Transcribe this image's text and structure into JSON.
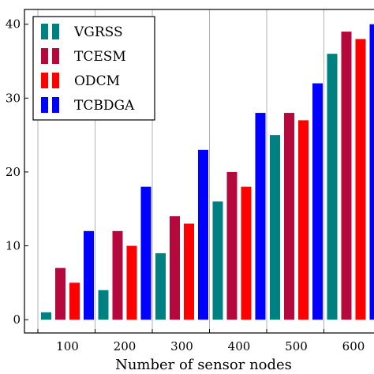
{
  "chart_data": {
    "type": "bar",
    "xlabel": "Number of sensor nodes",
    "ylabel": "",
    "categories": [
      "100",
      "200",
      "300",
      "400",
      "500",
      "600"
    ],
    "ylim": [
      -1.8,
      42
    ],
    "yticks": [
      0,
      10,
      20,
      30,
      40
    ],
    "grid": "vertical",
    "legend_position": "top-left",
    "series": [
      {
        "name": "VGRSS",
        "color": "#008080",
        "values": [
          1,
          4,
          9,
          16,
          25,
          36
        ]
      },
      {
        "name": "TCESM",
        "color": "#b5093e",
        "values": [
          7,
          12,
          14,
          20,
          28,
          39
        ]
      },
      {
        "name": "ODCM",
        "color": "#ff0000",
        "values": [
          5,
          10,
          13,
          18,
          27,
          38
        ]
      },
      {
        "name": "TCBDGA",
        "color": "#0000ff",
        "values": [
          12,
          18,
          23,
          28,
          32,
          40
        ]
      }
    ]
  }
}
